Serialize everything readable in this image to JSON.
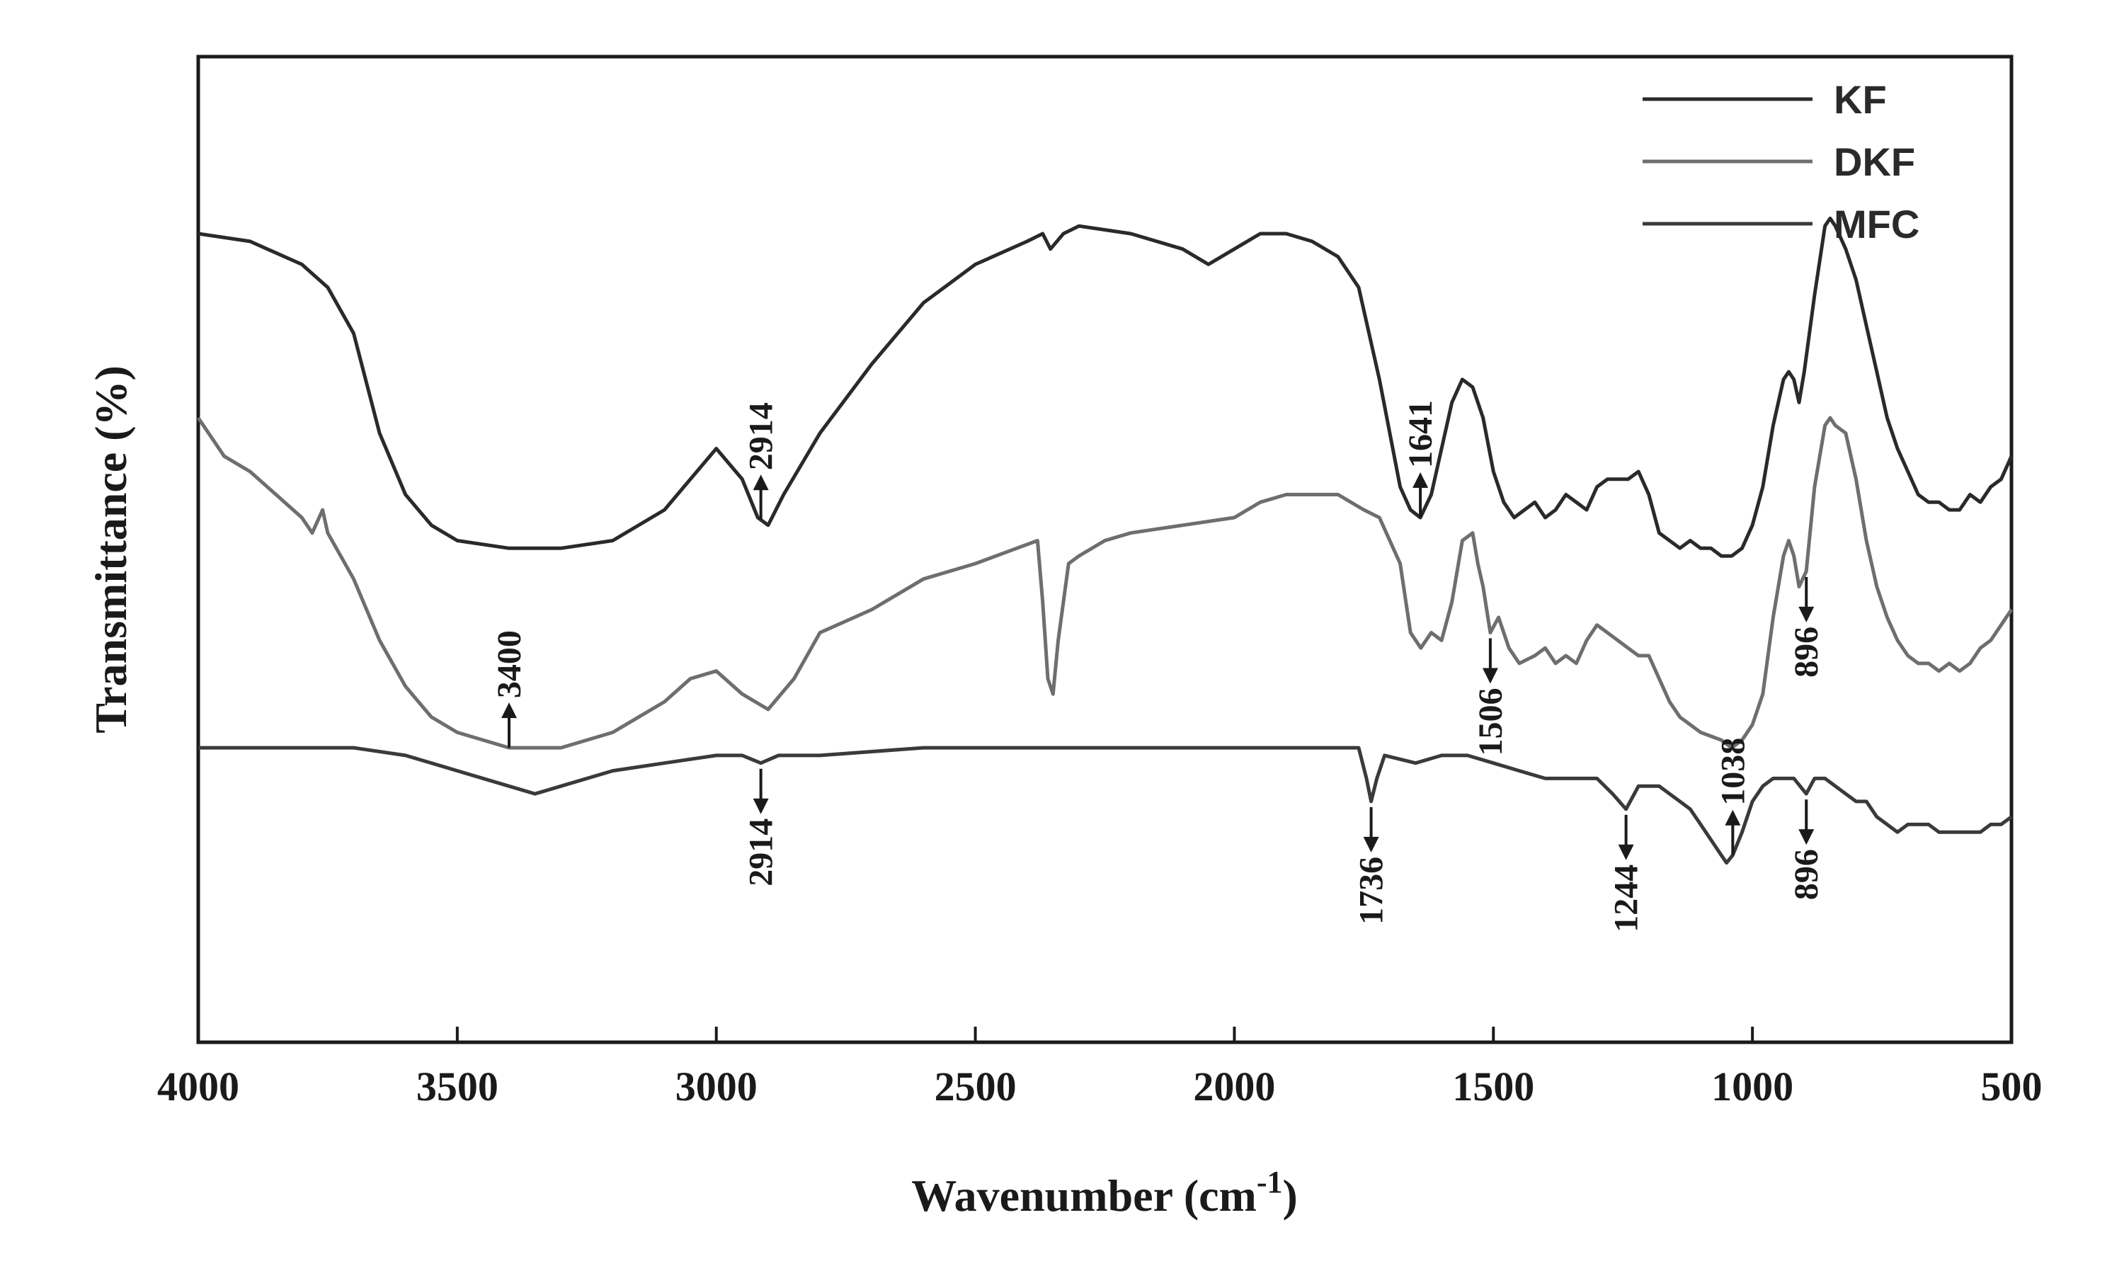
{
  "chart_data": {
    "type": "line",
    "title": "",
    "xlabel": "Wavenumber (cm",
    "xlabel_sup": "-1",
    "xlabel_end": ")",
    "ylabel": "Transmittance (%)",
    "xlim": [
      4000,
      500
    ],
    "x_reversed": true,
    "y_ticks_shown": false,
    "grid": false,
    "legend_position": "top-right",
    "x_ticks": [
      "4000",
      "3500",
      "3000",
      "2500",
      "2000",
      "1500",
      "1000",
      "500"
    ],
    "series": [
      {
        "name": "KF",
        "color": "#2a2a2a",
        "points": [
          [
            4000,
            98
          ],
          [
            3900,
            97
          ],
          [
            3800,
            94
          ],
          [
            3750,
            91
          ],
          [
            3700,
            85
          ],
          [
            3650,
            72
          ],
          [
            3600,
            64
          ],
          [
            3550,
            60
          ],
          [
            3500,
            58
          ],
          [
            3400,
            57
          ],
          [
            3300,
            57
          ],
          [
            3200,
            58
          ],
          [
            3100,
            62
          ],
          [
            3050,
            66
          ],
          [
            3000,
            70
          ],
          [
            2950,
            66
          ],
          [
            2920,
            61
          ],
          [
            2900,
            60
          ],
          [
            2870,
            64
          ],
          [
            2800,
            72
          ],
          [
            2700,
            81
          ],
          [
            2600,
            89
          ],
          [
            2500,
            94
          ],
          [
            2400,
            97
          ],
          [
            2370,
            98
          ],
          [
            2355,
            96
          ],
          [
            2330,
            98
          ],
          [
            2300,
            99
          ],
          [
            2200,
            98
          ],
          [
            2100,
            96
          ],
          [
            2050,
            94
          ],
          [
            2000,
            96
          ],
          [
            1950,
            98
          ],
          [
            1900,
            98
          ],
          [
            1850,
            97
          ],
          [
            1800,
            95
          ],
          [
            1760,
            91
          ],
          [
            1720,
            79
          ],
          [
            1680,
            65
          ],
          [
            1660,
            62
          ],
          [
            1641,
            61
          ],
          [
            1620,
            64
          ],
          [
            1600,
            70
          ],
          [
            1580,
            76
          ],
          [
            1560,
            79
          ],
          [
            1540,
            78
          ],
          [
            1520,
            74
          ],
          [
            1500,
            67
          ],
          [
            1480,
            63
          ],
          [
            1460,
            61
          ],
          [
            1440,
            62
          ],
          [
            1420,
            63
          ],
          [
            1400,
            61
          ],
          [
            1380,
            62
          ],
          [
            1360,
            64
          ],
          [
            1340,
            63
          ],
          [
            1320,
            62
          ],
          [
            1300,
            65
          ],
          [
            1280,
            66
          ],
          [
            1260,
            66
          ],
          [
            1240,
            66
          ],
          [
            1220,
            67
          ],
          [
            1200,
            64
          ],
          [
            1180,
            59
          ],
          [
            1160,
            58
          ],
          [
            1140,
            57
          ],
          [
            1120,
            58
          ],
          [
            1100,
            57
          ],
          [
            1080,
            57
          ],
          [
            1060,
            56
          ],
          [
            1040,
            56
          ],
          [
            1020,
            57
          ],
          [
            1000,
            60
          ],
          [
            980,
            65
          ],
          [
            960,
            73
          ],
          [
            940,
            79
          ],
          [
            930,
            80
          ],
          [
            920,
            79
          ],
          [
            910,
            76
          ],
          [
            900,
            80
          ],
          [
            880,
            90
          ],
          [
            860,
            99
          ],
          [
            850,
            100
          ],
          [
            840,
            99
          ],
          [
            820,
            96
          ],
          [
            800,
            92
          ],
          [
            780,
            86
          ],
          [
            760,
            80
          ],
          [
            740,
            74
          ],
          [
            720,
            70
          ],
          [
            700,
            67
          ],
          [
            680,
            64
          ],
          [
            660,
            63
          ],
          [
            640,
            63
          ],
          [
            620,
            62
          ],
          [
            600,
            62
          ],
          [
            580,
            64
          ],
          [
            560,
            63
          ],
          [
            540,
            65
          ],
          [
            520,
            66
          ],
          [
            500,
            69
          ]
        ]
      },
      {
        "name": "DKF",
        "color": "#6e6e6e",
        "points": [
          [
            4000,
            74
          ],
          [
            3950,
            69
          ],
          [
            3900,
            67
          ],
          [
            3850,
            64
          ],
          [
            3800,
            61
          ],
          [
            3780,
            59
          ],
          [
            3760,
            62
          ],
          [
            3750,
            59
          ],
          [
            3700,
            53
          ],
          [
            3650,
            45
          ],
          [
            3600,
            39
          ],
          [
            3550,
            35
          ],
          [
            3500,
            33
          ],
          [
            3400,
            31
          ],
          [
            3300,
            31
          ],
          [
            3200,
            33
          ],
          [
            3100,
            37
          ],
          [
            3050,
            40
          ],
          [
            3000,
            41
          ],
          [
            2950,
            38
          ],
          [
            2900,
            36
          ],
          [
            2850,
            40
          ],
          [
            2800,
            46
          ],
          [
            2700,
            49
          ],
          [
            2600,
            53
          ],
          [
            2500,
            55
          ],
          [
            2420,
            57
          ],
          [
            2380,
            58
          ],
          [
            2370,
            50
          ],
          [
            2360,
            40
          ],
          [
            2350,
            38
          ],
          [
            2340,
            45
          ],
          [
            2320,
            55
          ],
          [
            2300,
            56
          ],
          [
            2250,
            58
          ],
          [
            2200,
            59
          ],
          [
            2100,
            60
          ],
          [
            2000,
            61
          ],
          [
            1950,
            63
          ],
          [
            1900,
            64
          ],
          [
            1850,
            64
          ],
          [
            1800,
            64
          ],
          [
            1750,
            62
          ],
          [
            1720,
            61
          ],
          [
            1680,
            55
          ],
          [
            1660,
            46
          ],
          [
            1640,
            44
          ],
          [
            1620,
            46
          ],
          [
            1600,
            45
          ],
          [
            1580,
            50
          ],
          [
            1560,
            58
          ],
          [
            1540,
            59
          ],
          [
            1530,
            55
          ],
          [
            1520,
            52
          ],
          [
            1506,
            46
          ],
          [
            1490,
            48
          ],
          [
            1470,
            44
          ],
          [
            1450,
            42
          ],
          [
            1420,
            43
          ],
          [
            1400,
            44
          ],
          [
            1380,
            42
          ],
          [
            1360,
            43
          ],
          [
            1340,
            42
          ],
          [
            1320,
            45
          ],
          [
            1300,
            47
          ],
          [
            1280,
            46
          ],
          [
            1260,
            45
          ],
          [
            1240,
            44
          ],
          [
            1220,
            43
          ],
          [
            1200,
            43
          ],
          [
            1180,
            40
          ],
          [
            1160,
            37
          ],
          [
            1140,
            35
          ],
          [
            1100,
            33
          ],
          [
            1060,
            32
          ],
          [
            1040,
            31
          ],
          [
            1020,
            32
          ],
          [
            1000,
            34
          ],
          [
            980,
            38
          ],
          [
            960,
            48
          ],
          [
            940,
            56
          ],
          [
            930,
            58
          ],
          [
            920,
            56
          ],
          [
            910,
            52
          ],
          [
            896,
            54
          ],
          [
            880,
            65
          ],
          [
            860,
            73
          ],
          [
            850,
            74
          ],
          [
            840,
            73
          ],
          [
            820,
            72
          ],
          [
            800,
            66
          ],
          [
            780,
            58
          ],
          [
            760,
            52
          ],
          [
            740,
            48
          ],
          [
            720,
            45
          ],
          [
            700,
            43
          ],
          [
            680,
            42
          ],
          [
            660,
            42
          ],
          [
            640,
            41
          ],
          [
            620,
            42
          ],
          [
            600,
            41
          ],
          [
            580,
            42
          ],
          [
            560,
            44
          ],
          [
            540,
            45
          ],
          [
            520,
            47
          ],
          [
            500,
            49
          ]
        ]
      },
      {
        "name": "MFC",
        "color": "#3a3a3a",
        "points": [
          [
            4000,
            31
          ],
          [
            3900,
            31
          ],
          [
            3800,
            31
          ],
          [
            3700,
            31
          ],
          [
            3600,
            30
          ],
          [
            3500,
            28
          ],
          [
            3400,
            26
          ],
          [
            3350,
            25
          ],
          [
            3300,
            26
          ],
          [
            3200,
            28
          ],
          [
            3100,
            29
          ],
          [
            3000,
            30
          ],
          [
            2950,
            30
          ],
          [
            2914,
            29
          ],
          [
            2880,
            30
          ],
          [
            2800,
            30
          ],
          [
            2600,
            31
          ],
          [
            2400,
            31
          ],
          [
            2200,
            31
          ],
          [
            2000,
            31
          ],
          [
            1800,
            31
          ],
          [
            1760,
            31
          ],
          [
            1745,
            27
          ],
          [
            1736,
            24
          ],
          [
            1725,
            27
          ],
          [
            1710,
            30
          ],
          [
            1650,
            29
          ],
          [
            1600,
            30
          ],
          [
            1550,
            30
          ],
          [
            1500,
            29
          ],
          [
            1450,
            28
          ],
          [
            1400,
            27
          ],
          [
            1350,
            27
          ],
          [
            1300,
            27
          ],
          [
            1270,
            25
          ],
          [
            1244,
            23
          ],
          [
            1220,
            26
          ],
          [
            1200,
            26
          ],
          [
            1180,
            26
          ],
          [
            1160,
            25
          ],
          [
            1140,
            24
          ],
          [
            1120,
            23
          ],
          [
            1100,
            21
          ],
          [
            1080,
            19
          ],
          [
            1060,
            17
          ],
          [
            1050,
            16
          ],
          [
            1038,
            17
          ],
          [
            1020,
            20
          ],
          [
            1000,
            24
          ],
          [
            980,
            26
          ],
          [
            960,
            27
          ],
          [
            940,
            27
          ],
          [
            920,
            27
          ],
          [
            896,
            25
          ],
          [
            880,
            27
          ],
          [
            860,
            27
          ],
          [
            840,
            26
          ],
          [
            820,
            25
          ],
          [
            800,
            24
          ],
          [
            780,
            24
          ],
          [
            760,
            22
          ],
          [
            740,
            21
          ],
          [
            720,
            20
          ],
          [
            700,
            21
          ],
          [
            680,
            21
          ],
          [
            660,
            21
          ],
          [
            640,
            20
          ],
          [
            620,
            20
          ],
          [
            600,
            20
          ],
          [
            580,
            20
          ],
          [
            560,
            20
          ],
          [
            540,
            21
          ],
          [
            520,
            21
          ],
          [
            500,
            22
          ]
        ]
      }
    ],
    "annotations": [
      {
        "label": "2914",
        "x": 2914,
        "series": "KF",
        "arrow": "up",
        "text_side": "above"
      },
      {
        "label": "1641",
        "x": 1641,
        "series": "KF",
        "arrow": "up",
        "text_side": "above"
      },
      {
        "label": "3400",
        "x": 3400,
        "series": "DKF",
        "arrow": "up",
        "text_side": "above"
      },
      {
        "label": "1506",
        "x": 1506,
        "series": "DKF",
        "arrow": "down",
        "text_side": "below"
      },
      {
        "label": "896",
        "x": 896,
        "series": "DKF",
        "arrow": "down",
        "text_side": "below"
      },
      {
        "label": "2914",
        "x": 2914,
        "series": "MFC",
        "arrow": "down",
        "text_side": "below"
      },
      {
        "label": "1736",
        "x": 1736,
        "series": "MFC",
        "arrow": "down",
        "text_side": "below"
      },
      {
        "label": "1244",
        "x": 1244,
        "series": "MFC",
        "arrow": "down",
        "text_side": "below"
      },
      {
        "label": "1038",
        "x": 1038,
        "series": "MFC",
        "arrow": "up",
        "text_side": "above"
      },
      {
        "label": "896",
        "x": 896,
        "series": "MFC",
        "arrow": "down",
        "text_side": "below"
      }
    ]
  }
}
